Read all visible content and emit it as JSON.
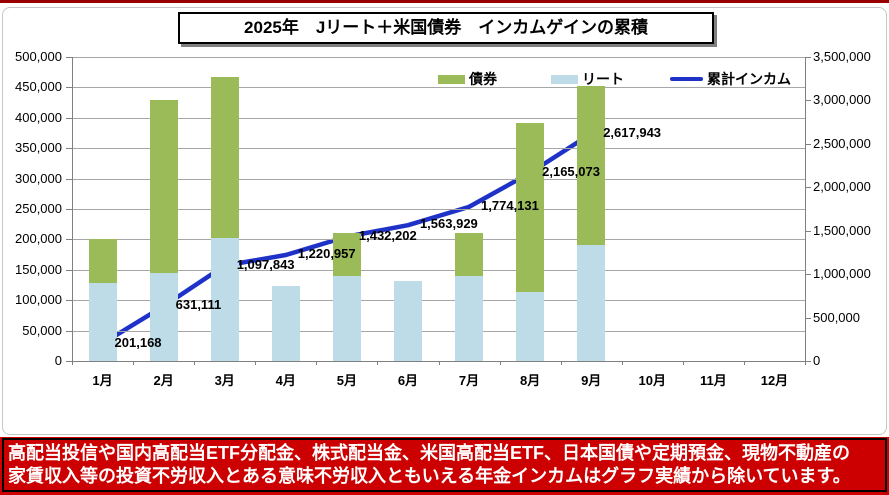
{
  "page": {
    "title": "2025年　Jリート＋米国債券　インカムゲインの累積",
    "footer_lines": [
      "高配当投信や国内高配当ETF分配金、株式配当金、米国高配当ETF、日本国債や定期預金、現物不動産の",
      "家賃収入等の投資不労収入とある意味不労収入ともいえる年金インカムはグラフ実績から除いています。"
    ]
  },
  "colors": {
    "banner_bg": "#CC0000",
    "banner_text": "#FFFFFF",
    "top_strip": "#990000",
    "bond_green": "#9BBB59",
    "reit_blue": "#BDDCE8",
    "line_blue": "#1E32C8",
    "gridline": "#A6A6A6",
    "axis": "#808080"
  },
  "chart_data": {
    "type": "bar",
    "subtype": "stacked-bars-with-cumulative-line",
    "title": "2025年 Jリート＋米国債券 インカムゲインの累積",
    "categories": [
      "1月",
      "2月",
      "3月",
      "4月",
      "5月",
      "6月",
      "7月",
      "8月",
      "9月",
      "10月",
      "11月",
      "12月"
    ],
    "bar_series": [
      {
        "name": "リート",
        "color": "#BDDCE8",
        "stack_order": 1,
        "values": [
          128000,
          144000,
          203000,
          123114,
          140000,
          131727,
          140000,
          114000,
          190000,
          null,
          null,
          null
        ]
      },
      {
        "name": "債券",
        "color": "#9BBB59",
        "stack_order": 2,
        "values": [
          73168,
          285943,
          263732,
          0,
          71245,
          0,
          70202,
          276942,
          262870,
          null,
          null,
          null
        ]
      }
    ],
    "bar_totals": [
      201168,
      429943,
      466732,
      123114,
      211245,
      131727,
      210202,
      390942,
      452870,
      null,
      null,
      null
    ],
    "line_series": {
      "name": "累計インカム",
      "color": "#1E32C8",
      "axis": "right",
      "values": [
        201168,
        631111,
        1097843,
        1220957,
        1432202,
        1563929,
        1774131,
        2165073,
        2617943,
        null,
        null,
        null
      ]
    },
    "data_labels": [
      "201,168",
      "631,111",
      "1,097,843",
      "1,220,957",
      "1,432,202",
      "1,563,929",
      "1,774,131",
      "2,165,073",
      "2,617,943"
    ],
    "left_axis": {
      "min": 0,
      "max": 500000,
      "step": 50000
    },
    "right_axis": {
      "min": 0,
      "max": 3500000,
      "step": 500000
    },
    "grid": true,
    "legend_position": "top-inside",
    "legend": [
      {
        "label": "債券",
        "swatch": "box",
        "color": "#9BBB59"
      },
      {
        "label": "リート",
        "swatch": "box",
        "color": "#BDDCE8"
      },
      {
        "label": "累計インカム",
        "swatch": "line",
        "color": "#1E32C8"
      }
    ]
  }
}
